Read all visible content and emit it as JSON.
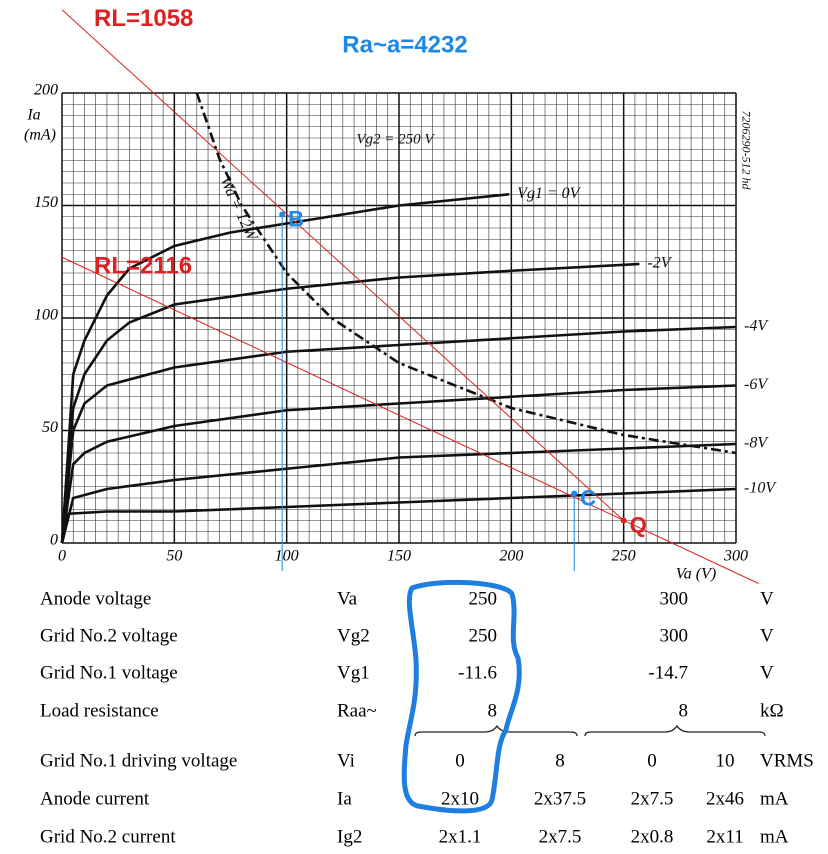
{
  "chart_data": {
    "type": "line",
    "x_label": "Va (V)",
    "y_label": "Ia",
    "y_unit": "(mA)",
    "xlim": [
      0,
      300
    ],
    "ylim": [
      0,
      200
    ],
    "xticks": [
      0,
      50,
      100,
      150,
      200,
      250,
      300
    ],
    "yticks": [
      0,
      50,
      100,
      150,
      200
    ],
    "grid": true,
    "minor_step": 5,
    "annotations": [
      "Ra~a=4232",
      "Vg2 = 250 V",
      "7206290-512 hd"
    ],
    "series": [
      {
        "name": "Vg1 = 0V",
        "color": "#111111",
        "style": "solid",
        "x": [
          0,
          5,
          10,
          20,
          30,
          50,
          75,
          100,
          150,
          199
        ],
        "values": [
          0,
          75,
          90,
          110,
          122,
          132,
          138,
          142,
          150,
          155
        ]
      },
      {
        "name": "-2V",
        "color": "#111111",
        "style": "solid",
        "x": [
          0,
          5,
          10,
          20,
          30,
          50,
          100,
          150,
          200,
          257
        ],
        "values": [
          0,
          60,
          75,
          90,
          98,
          106,
          113,
          118,
          121,
          124
        ]
      },
      {
        "name": "-4V",
        "color": "#111111",
        "style": "solid",
        "x": [
          0,
          5,
          10,
          20,
          50,
          100,
          150,
          200,
          250,
          300
        ],
        "values": [
          0,
          50,
          62,
          70,
          78,
          85,
          88,
          91,
          94,
          96
        ]
      },
      {
        "name": "-6V",
        "color": "#111111",
        "style": "solid",
        "x": [
          0,
          5,
          10,
          20,
          50,
          100,
          150,
          200,
          250,
          300
        ],
        "values": [
          0,
          35,
          40,
          45,
          52,
          59,
          62,
          65,
          68,
          70
        ]
      },
      {
        "name": "-8V",
        "color": "#111111",
        "style": "solid",
        "x": [
          0,
          5,
          20,
          50,
          100,
          150,
          200,
          250,
          300
        ],
        "values": [
          0,
          20,
          24,
          28,
          33,
          38,
          40,
          42,
          44
        ]
      },
      {
        "name": "-10V",
        "color": "#111111",
        "style": "solid",
        "x": [
          0,
          3,
          20,
          50,
          100,
          150,
          200,
          250,
          300
        ],
        "values": [
          0,
          13,
          14,
          14,
          16,
          18,
          20,
          22,
          24
        ]
      },
      {
        "name": "Wa = 12W",
        "color": "#111111",
        "style": "dashed",
        "x": [
          60,
          70,
          80,
          100,
          120,
          150,
          200,
          250,
          300
        ],
        "values": [
          200,
          171,
          150,
          120,
          100,
          80,
          60,
          48,
          40
        ]
      },
      {
        "name": "RL=1058",
        "color": "#e02020",
        "style": "thin",
        "x": [
          0,
          250
        ],
        "values": [
          237,
          10
        ]
      },
      {
        "name": "RL=2116",
        "color": "#e02020",
        "style": "thin",
        "x": [
          0,
          310
        ],
        "values": [
          127,
          -18
        ]
      }
    ],
    "points": [
      {
        "name": "B",
        "x": 98,
        "y": 146,
        "color": "#1e88e5"
      },
      {
        "name": "C",
        "x": 228,
        "y": 22,
        "color": "#1e88e5"
      },
      {
        "name": "Q",
        "x": 250,
        "y": 10,
        "color": "#e02020"
      }
    ]
  },
  "table": {
    "rows": [
      [
        "Anode voltage",
        "Va",
        "250",
        "300",
        "V"
      ],
      [
        "Grid No.2 voltage",
        "Vg2",
        "250",
        "300",
        "V"
      ],
      [
        "Grid No.1 voltage",
        "Vg1",
        "-11.6",
        "-14.7",
        "V"
      ],
      [
        "Load resistance",
        "Raa~",
        "8",
        "8",
        "kΩ"
      ],
      [
        "Grid No.1 driving voltage",
        "Vi",
        "0",
        "8",
        "0",
        "10",
        "VRMS"
      ],
      [
        "Anode current",
        "Ia",
        "2x10",
        "2x37.5",
        "2x7.5",
        "2x46",
        "mA"
      ],
      [
        "Grid No.2 current",
        "Ig2",
        "2x1.1",
        "2x7.5",
        "2x0.8",
        "2x11",
        "mA"
      ]
    ]
  }
}
